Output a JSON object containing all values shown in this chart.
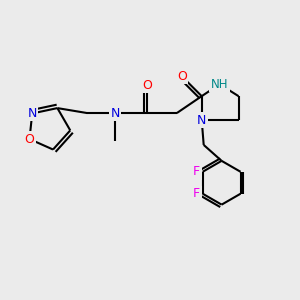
{
  "background_color": "#ebebeb",
  "bond_width": 1.5,
  "atom_colors": {
    "N": "#0000dd",
    "O": "#ff0000",
    "F": "#ee00ee",
    "NH": "#008888"
  },
  "figsize": [
    3.0,
    3.0
  ],
  "dpi": 100
}
